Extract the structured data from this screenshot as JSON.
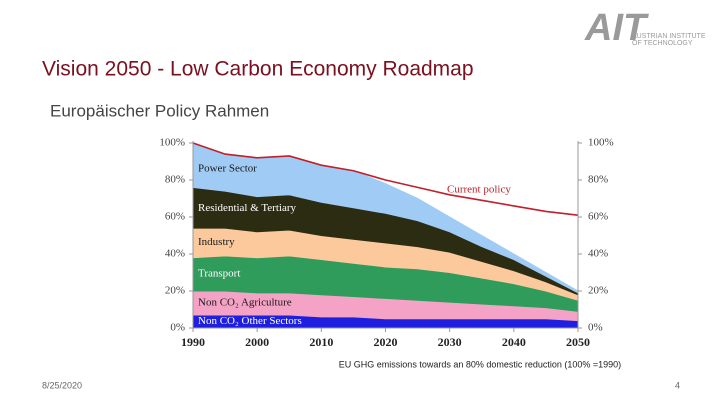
{
  "logo": {
    "mark": "AIT",
    "name_line1": "AUSTRIAN INSTITUTE",
    "name_line2": "OF TECHNOLOGY"
  },
  "header": {
    "title": "Vision 2050 - Low Carbon Economy Roadmap",
    "subtitle": "Europäischer Policy Rahmen"
  },
  "chart_data": {
    "type": "stacked_area",
    "x": [
      1990,
      1995,
      2000,
      2005,
      2010,
      2015,
      2020,
      2025,
      2030,
      2035,
      2040,
      2045,
      2050
    ],
    "xlim": [
      1990,
      2050
    ],
    "xticks": [
      1990,
      2000,
      2010,
      2020,
      2030,
      2040,
      2050
    ],
    "ylim": [
      0,
      100
    ],
    "yticks": [
      {
        "value": 0,
        "label": "0%"
      },
      {
        "value": 20,
        "label": "20%"
      },
      {
        "value": 40,
        "label": "40%"
      },
      {
        "value": 60,
        "label": "60%"
      },
      {
        "value": 80,
        "label": "80%"
      },
      {
        "value": 100,
        "label": "100%"
      }
    ],
    "y2lim": [
      0,
      100
    ],
    "y2ticks": [
      {
        "value": 0,
        "label": "0%"
      },
      {
        "value": 20,
        "label": "20%"
      },
      {
        "value": 40,
        "label": "40%"
      },
      {
        "value": 60,
        "label": "60%"
      },
      {
        "value": 80,
        "label": "80%"
      },
      {
        "value": 100,
        "label": "100%"
      }
    ],
    "series": [
      {
        "name": "Non CO₂ Other Sectors",
        "color": "#1f1fe0",
        "label_color": "#ffffff",
        "values": [
          7,
          7,
          7,
          7,
          6,
          6,
          5,
          5,
          5,
          5,
          5,
          5,
          4
        ]
      },
      {
        "name": "Non CO₂ Agriculture",
        "color": "#f4a3c6",
        "label_color": "#1a1a1a",
        "values": [
          13,
          13,
          12,
          12,
          12,
          11,
          11,
          10,
          9,
          8,
          7,
          6,
          5
        ]
      },
      {
        "name": "Transport",
        "color": "#2f9c5c",
        "label_color": "#ffffff",
        "values": [
          18,
          19,
          19,
          20,
          19,
          18,
          17,
          17,
          16,
          14,
          12,
          9,
          6
        ]
      },
      {
        "name": "Industry",
        "color": "#fbc99c",
        "label_color": "#1a1a1a",
        "values": [
          16,
          15,
          14,
          14,
          13,
          13,
          13,
          12,
          11,
          9,
          7,
          5,
          3
        ]
      },
      {
        "name": "Residential & Tertiary",
        "color": "#2c2c12",
        "label_color": "#ffffff",
        "values": [
          22,
          20,
          19,
          19,
          18,
          17,
          16,
          14,
          11,
          8,
          6,
          3,
          1
        ]
      },
      {
        "name": "Power Sector",
        "color": "#9fcbf4",
        "label_color": "#1a1a1a",
        "values": [
          24,
          20,
          21,
          21,
          20,
          20,
          16,
          12,
          8,
          6,
          3,
          2,
          1
        ]
      }
    ],
    "line": {
      "name": "Current policy",
      "color": "#c0202a",
      "values": [
        100,
        94,
        92,
        93,
        88,
        85,
        80,
        76,
        72,
        69,
        66,
        63,
        61
      ]
    },
    "caption": "EU GHG emissions towards an 80% domestic reduction (100% =1990)"
  },
  "footer": {
    "date": "8/25/2020",
    "page": "4"
  }
}
